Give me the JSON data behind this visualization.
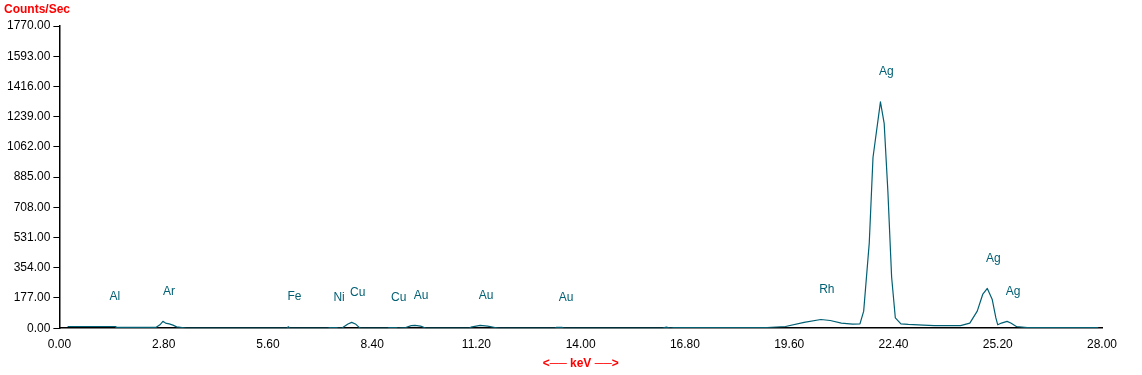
{
  "chart_data": {
    "type": "line",
    "ylabel": "Counts/Sec",
    "xlabel": "<── keV ──>",
    "color": "#005f73",
    "marker": "none",
    "grid": false,
    "legend": false,
    "x": [
      0.22,
      1.5,
      1.52,
      2.6,
      2.7,
      2.78,
      2.85,
      2.95,
      3.05,
      3.15,
      3.3,
      3.4,
      6.1,
      6.15,
      6.2,
      7.2,
      7.25,
      7.45,
      7.5,
      7.6,
      7.75,
      7.85,
      7.95,
      8.05,
      8.1,
      8.8,
      8.85,
      9.05,
      9.1,
      9.3,
      9.45,
      9.55,
      9.7,
      9.8,
      9.85,
      11.0,
      11.05,
      11.3,
      11.5,
      11.7,
      11.8,
      13.3,
      13.35,
      13.5,
      13.55,
      16.2,
      16.3,
      16.4,
      16.5,
      19.0,
      19.5,
      20.0,
      20.45,
      20.7,
      21.0,
      21.3,
      21.5,
      21.6,
      21.75,
      21.85,
      22.05,
      22.15,
      22.25,
      22.35,
      22.45,
      22.6,
      22.8,
      23.2,
      23.5,
      24.2,
      24.45,
      24.65,
      24.8,
      24.92,
      25.05,
      25.15,
      25.2,
      25.3,
      25.45,
      25.55,
      25.7,
      26.0,
      27.9
    ],
    "values": [
      10,
      10,
      5,
      5,
      20,
      40,
      30,
      25,
      18,
      8,
      4,
      0,
      0,
      8,
      0,
      0,
      4,
      4,
      0,
      2,
      25,
      34,
      25,
      5,
      0,
      0,
      4,
      4,
      0,
      4,
      15,
      17,
      12,
      4,
      0,
      0,
      6,
      17,
      12,
      4,
      0,
      0,
      5,
      5,
      0,
      0,
      6,
      0,
      4,
      4,
      10,
      34,
      51,
      45,
      30,
      24,
      25,
      100,
      500,
      1000,
      1326,
      1200,
      800,
      300,
      60,
      25,
      22,
      18,
      15,
      15,
      30,
      100,
      200,
      233,
      170,
      60,
      20,
      30,
      40,
      30,
      10,
      3,
      3
    ],
    "ylim": [
      0,
      1770
    ],
    "yticks": [
      {
        "value": 0,
        "label": "0.00"
      },
      {
        "value": 177,
        "label": "177.00"
      },
      {
        "value": 354,
        "label": "354.00"
      },
      {
        "value": 531,
        "label": "531.00"
      },
      {
        "value": 708,
        "label": "708.00"
      },
      {
        "value": 885,
        "label": "885.00"
      },
      {
        "value": 1062,
        "label": "1062.00"
      },
      {
        "value": 1239,
        "label": "1239.00"
      },
      {
        "value": 1416,
        "label": "1416.00"
      },
      {
        "value": 1593,
        "label": "1593.00"
      },
      {
        "value": 1770,
        "label": "1770.00"
      }
    ],
    "xlim": [
      0,
      28
    ],
    "xticks": [
      {
        "value": 0,
        "label": "0.00"
      },
      {
        "value": 2.8,
        "label": "2.80"
      },
      {
        "value": 5.6,
        "label": "5.60"
      },
      {
        "value": 8.4,
        "label": "8.40"
      },
      {
        "value": 11.2,
        "label": "11.20"
      },
      {
        "value": 14,
        "label": "14.00"
      },
      {
        "value": 16.8,
        "label": "16.80"
      },
      {
        "value": 19.6,
        "label": "19.60"
      },
      {
        "value": 22.4,
        "label": "22.40"
      },
      {
        "value": 25.2,
        "label": "25.20"
      },
      {
        "value": 28,
        "label": "28.00"
      }
    ],
    "annotations": [
      {
        "text": "Al",
        "x": 1.33,
        "y": 10
      },
      {
        "text": "Ar",
        "x": 2.78,
        "y": 40
      },
      {
        "text": "Fe",
        "x": 6.15,
        "y": 8
      },
      {
        "text": "Ni",
        "x": 7.35,
        "y": 4
      },
      {
        "text": "Cu",
        "x": 7.85,
        "y": 34
      },
      {
        "text": "Cu",
        "x": 8.95,
        "y": 4
      },
      {
        "text": "Au",
        "x": 9.55,
        "y": 17
      },
      {
        "text": "Au",
        "x": 11.3,
        "y": 17
      },
      {
        "text": "Au",
        "x": 13.45,
        "y": 5
      },
      {
        "text": "Rh",
        "x": 20.45,
        "y": 51
      },
      {
        "text": "Ag",
        "x": 22.05,
        "y": 1326
      },
      {
        "text": "Ag",
        "x": 24.92,
        "y": 233
      },
      {
        "text": "Ag",
        "x": 25.45,
        "y": 40
      }
    ]
  }
}
